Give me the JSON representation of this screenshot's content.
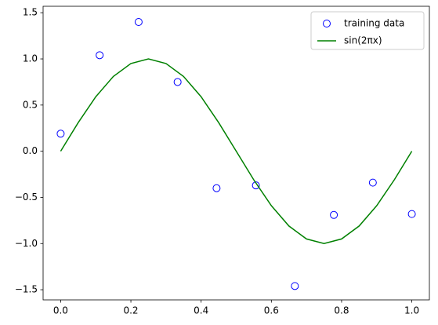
{
  "chart_data": {
    "type": "scatter",
    "series": [
      {
        "name": "training data",
        "type": "scatter",
        "color": "#0000ff",
        "x": [
          0.0,
          0.111,
          0.222,
          0.333,
          0.444,
          0.556,
          0.667,
          0.778,
          0.889,
          1.0
        ],
        "values": [
          0.19,
          1.04,
          1.4,
          0.75,
          -0.4,
          -0.37,
          -1.46,
          -0.69,
          -0.34,
          -0.68
        ]
      },
      {
        "name": "sin(2πx)",
        "type": "line",
        "color": "#008000",
        "x": [
          0.0,
          0.05,
          0.1,
          0.15,
          0.2,
          0.25,
          0.3,
          0.35,
          0.4,
          0.45,
          0.5,
          0.55,
          0.6,
          0.65,
          0.7,
          0.75,
          0.8,
          0.85,
          0.9,
          0.95,
          1.0
        ],
        "values": [
          0.0,
          0.31,
          0.59,
          0.81,
          0.95,
          1.0,
          0.95,
          0.81,
          0.59,
          0.31,
          0.0,
          -0.31,
          -0.59,
          -0.81,
          -0.95,
          -1.0,
          -0.95,
          -0.81,
          -0.59,
          -0.31,
          0.0
        ]
      }
    ],
    "xlim": [
      -0.05,
      1.05
    ],
    "ylim": [
      -1.61,
      1.57
    ],
    "xticks": [
      {
        "value": 0,
        "label": "0.0"
      },
      0.2,
      0.4,
      0.6,
      0.8,
      {
        "value": 1,
        "label": "1.0"
      }
    ],
    "yticks": [
      {
        "value": -1.5,
        "label": "−1.5"
      },
      {
        "value": -1,
        "label": "−1.0"
      },
      {
        "value": -0.5,
        "label": "−0.5"
      },
      {
        "value": 0,
        "label": "0.0"
      },
      0.5,
      {
        "value": 1,
        "label": "1.0"
      },
      1.5
    ],
    "legend": "upper right"
  }
}
